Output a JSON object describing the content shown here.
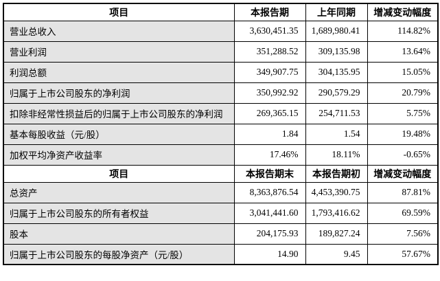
{
  "table": {
    "colors": {
      "label_cell_bg": "#e4e4e4",
      "value_cell_bg": "#ffffff",
      "border": "#000000",
      "text": "#000000"
    },
    "section1": {
      "headers": [
        "项目",
        "本报告期",
        "上年同期",
        "增减变动幅度"
      ],
      "rows": [
        [
          "营业总收入",
          "3,630,451.35",
          "1,689,980.41",
          "114.82%"
        ],
        [
          "营业利润",
          "351,288.52",
          "309,135.98",
          "13.64%"
        ],
        [
          "利润总额",
          "349,907.75",
          "304,135.95",
          "15.05%"
        ],
        [
          "归属于上市公司股东的净利润",
          "350,992.92",
          "290,579.29",
          "20.79%"
        ],
        [
          "扣除非经常性损益后的归属于上市公司股东的净利润",
          "269,365.15",
          "254,711.53",
          "5.75%"
        ],
        [
          "基本每股收益（元/股）",
          "1.84",
          "1.54",
          "19.48%"
        ],
        [
          "加权平均净资产收益率",
          "17.46%",
          "18.11%",
          "-0.65%"
        ]
      ]
    },
    "section2": {
      "headers": [
        "项目",
        "本报告期末",
        "本报告期初",
        "增减变动幅度"
      ],
      "rows": [
        [
          "总资产",
          "8,363,876.54",
          "4,453,390.75",
          "87.81%"
        ],
        [
          "归属于上市公司股东的所有者权益",
          "3,041,441.60",
          "1,793,416.62",
          "69.59%"
        ],
        [
          "股本",
          "204,175.93",
          "189,827.24",
          "7.56%"
        ],
        [
          "归属于上市公司股东的每股净资产（元/股）",
          "14.90",
          "9.45",
          "57.67%"
        ]
      ]
    }
  }
}
